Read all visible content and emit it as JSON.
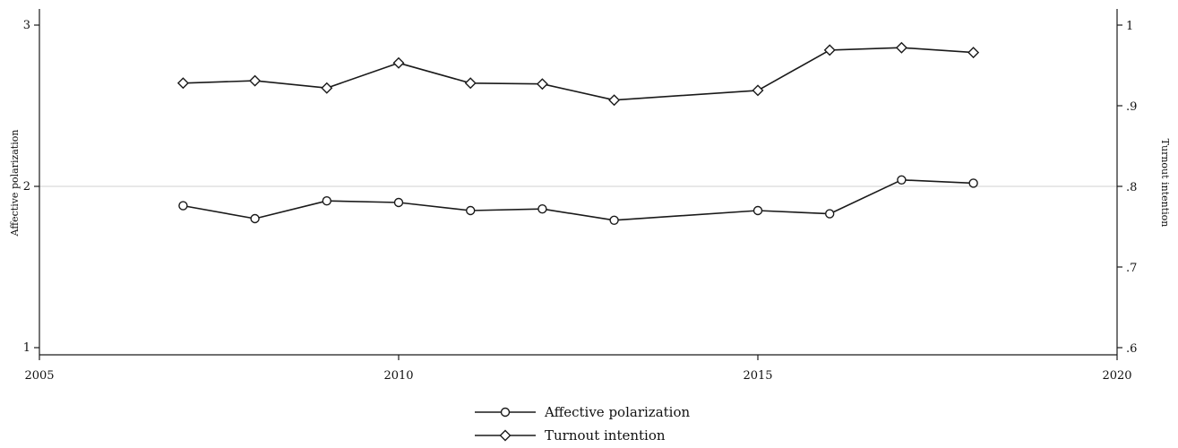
{
  "chart_data": {
    "type": "line",
    "title": "",
    "xlabel": "",
    "ylabel": "Affective polarization",
    "y2label": "Turnout intention",
    "xlim": [
      2005,
      2020
    ],
    "ylim": [
      1,
      3
    ],
    "y2lim": [
      0.6,
      1.0
    ],
    "x_ticks": [
      2005,
      2010,
      2015,
      2020
    ],
    "x_tick_labels": [
      "2005",
      "2010",
      "2015",
      "2020"
    ],
    "y_ticks": [
      1,
      2,
      3
    ],
    "y_tick_labels": [
      "1",
      "2",
      "3"
    ],
    "y2_ticks": [
      0.6,
      0.7,
      0.8,
      0.9,
      1.0
    ],
    "y2_tick_labels": [
      ".6",
      ".7",
      ".8",
      ".9",
      "1"
    ],
    "grid": "horizontal",
    "legend_position": "bottom-center",
    "line_color": "#1a1a1a",
    "grid_color": "#d9d9d9",
    "series": [
      {
        "name": "Affective polarization",
        "axis": "left",
        "marker": "circle",
        "x": [
          2007,
          2008,
          2009,
          2010,
          2011,
          2012,
          2013,
          2015,
          2016,
          2017,
          2018
        ],
        "values": [
          1.88,
          1.8,
          1.91,
          1.9,
          1.85,
          1.86,
          1.79,
          1.85,
          1.83,
          2.04,
          2.02
        ]
      },
      {
        "name": "Turnout intention",
        "axis": "right",
        "marker": "diamond",
        "x": [
          2007,
          2008,
          2009,
          2010,
          2011,
          2012,
          2013,
          2015,
          2016,
          2017,
          2018
        ],
        "values": [
          0.928,
          0.931,
          0.922,
          0.953,
          0.928,
          0.927,
          0.907,
          0.919,
          0.969,
          0.972,
          0.966
        ]
      }
    ]
  }
}
